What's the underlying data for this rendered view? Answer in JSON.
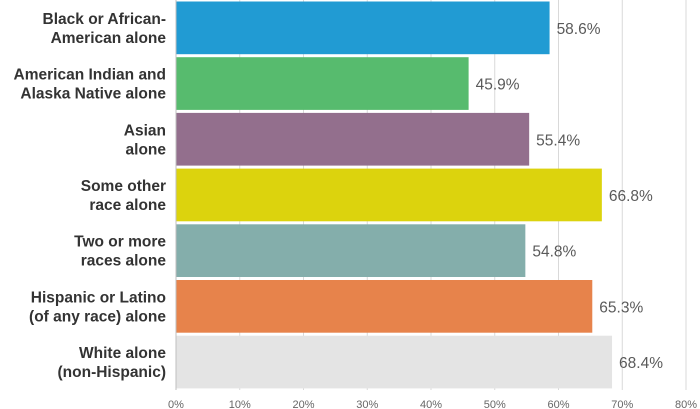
{
  "chart_data": {
    "type": "bar",
    "orientation": "horizontal",
    "categories": [
      [
        "Black or African-",
        "American alone"
      ],
      [
        "American Indian and",
        "Alaska Native alone"
      ],
      [
        "Asian",
        "alone"
      ],
      [
        "Some other",
        "race alone"
      ],
      [
        "Two or more",
        "races alone"
      ],
      [
        "Hispanic or Latino",
        "(of any race) alone"
      ],
      [
        "White alone",
        "(non-Hispanic)"
      ]
    ],
    "values": [
      58.6,
      45.9,
      55.4,
      66.8,
      54.8,
      65.3,
      68.4
    ],
    "value_labels": [
      "58.6%",
      "45.9%",
      "55.4%",
      "66.8%",
      "54.8%",
      "65.3%",
      "68.4%"
    ],
    "colors": [
      "#219bd3",
      "#57bb6e",
      "#936f8d",
      "#dcd30d",
      "#84aeab",
      "#e7834b",
      "#e4e4e4"
    ],
    "xlim": [
      0,
      80
    ],
    "xticks": [
      "0%",
      "10%",
      "20%",
      "30%",
      "40%",
      "50%",
      "60%",
      "70%",
      "80%"
    ],
    "grid": true,
    "legend": "none"
  }
}
